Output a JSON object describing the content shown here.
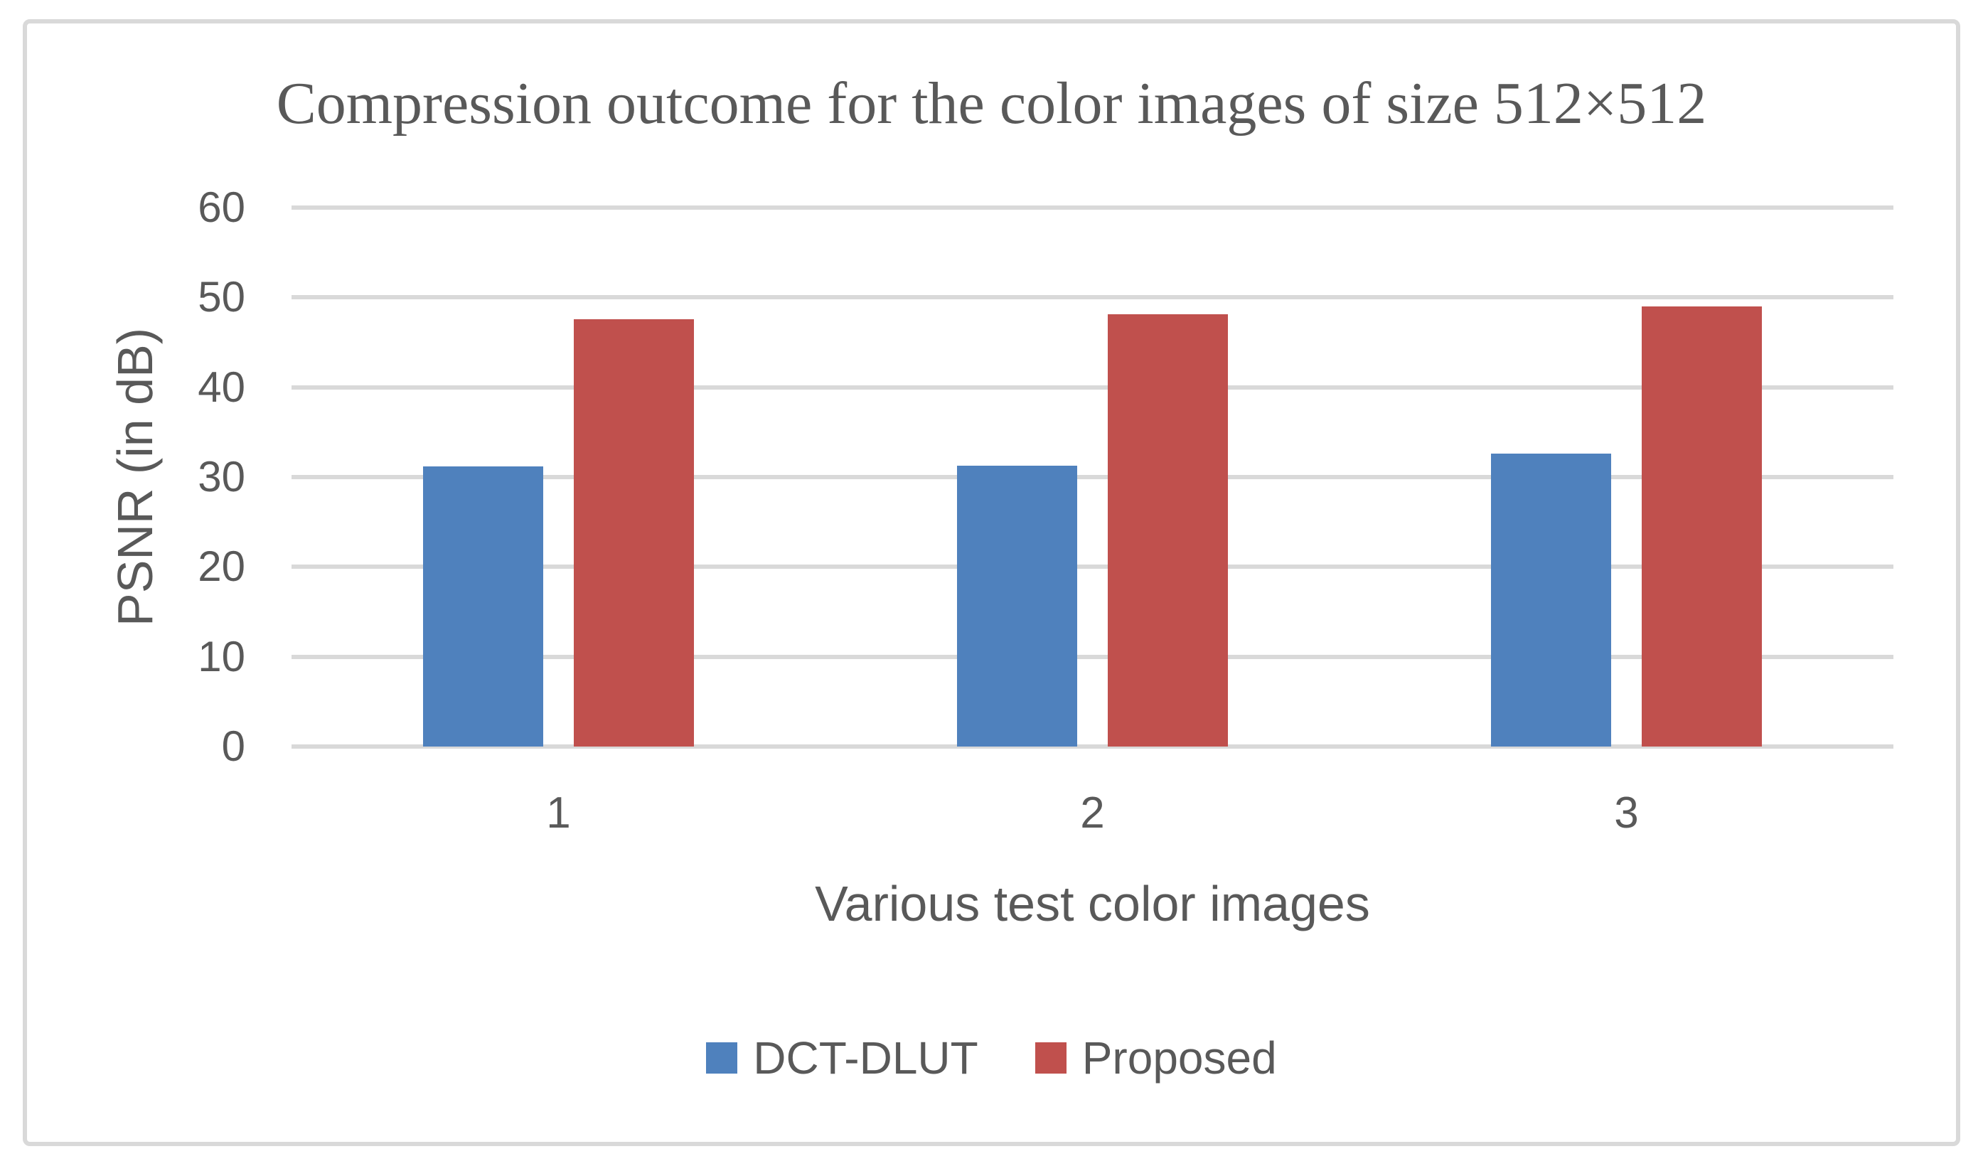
{
  "chart_data": {
    "type": "bar",
    "title": "Compression outcome for the color images of size 512×512",
    "xlabel": "Various test color images",
    "ylabel": "PSNR (in dB)",
    "categories": [
      "1",
      "2",
      "3"
    ],
    "series": [
      {
        "name": "DCT-DLUT",
        "color": "#4F81BD",
        "values": [
          31.2,
          31.3,
          32.6
        ]
      },
      {
        "name": "Proposed",
        "color": "#C0504D",
        "values": [
          47.6,
          48.1,
          49.0
        ]
      }
    ],
    "ylim": [
      0,
      60
    ],
    "ytick_step": 10,
    "yticks": [
      0,
      10,
      20,
      30,
      40,
      50,
      60
    ],
    "grid": true,
    "legend_position": "bottom",
    "colors": {
      "text": "#595959",
      "gridline": "#D9D9D9",
      "frame_border": "#D9D9D9",
      "background": "#FFFFFF"
    }
  }
}
